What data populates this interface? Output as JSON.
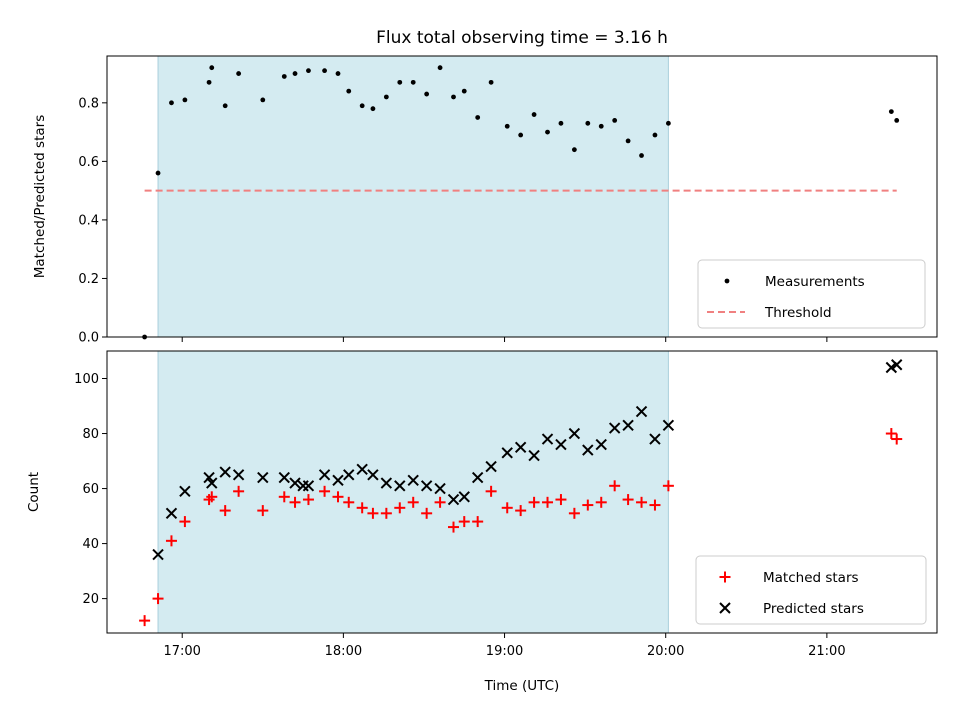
{
  "chart_data": [
    {
      "type": "scatter",
      "title": "Flux total observing time = 3.16 h",
      "xlabel": "",
      "ylabel": "Matched/Predicted stars",
      "xlim": [
        "16:32",
        "21:41"
      ],
      "ylim": [
        0,
        0.96
      ],
      "yticks": [
        "0.0",
        "0.2",
        "0.4",
        "0.6",
        "0.8"
      ],
      "ytick_values": [
        0,
        0.2,
        0.4,
        0.6,
        0.8
      ],
      "shaded_region": {
        "x": [
          "16:51",
          "20:01"
        ],
        "color": "#d4ebf1"
      },
      "grid": false,
      "legend": "lower right",
      "series": [
        {
          "name": "Measurements",
          "marker": "dot",
          "color": "#000000",
          "points": [
            [
              "16:46",
              0.0
            ],
            [
              "16:51",
              0.56
            ],
            [
              "16:56",
              0.8
            ],
            [
              "17:01",
              0.81
            ],
            [
              "17:10",
              0.87
            ],
            [
              "17:11",
              0.92
            ],
            [
              "17:16",
              0.79
            ],
            [
              "17:21",
              0.9
            ],
            [
              "17:30",
              0.81
            ],
            [
              "17:38",
              0.89
            ],
            [
              "17:42",
              0.9
            ],
            [
              "17:47",
              0.91
            ],
            [
              "17:53",
              0.91
            ],
            [
              "17:58",
              0.9
            ],
            [
              "18:02",
              0.84
            ],
            [
              "18:07",
              0.79
            ],
            [
              "18:11",
              0.78
            ],
            [
              "18:16",
              0.82
            ],
            [
              "18:21",
              0.87
            ],
            [
              "18:26",
              0.87
            ],
            [
              "18:31",
              0.83
            ],
            [
              "18:36",
              0.92
            ],
            [
              "18:41",
              0.82
            ],
            [
              "18:45",
              0.84
            ],
            [
              "18:50",
              0.75
            ],
            [
              "18:55",
              0.87
            ],
            [
              "19:01",
              0.72
            ],
            [
              "19:06",
              0.69
            ],
            [
              "19:11",
              0.76
            ],
            [
              "19:16",
              0.7
            ],
            [
              "19:21",
              0.73
            ],
            [
              "19:26",
              0.64
            ],
            [
              "19:31",
              0.73
            ],
            [
              "19:36",
              0.72
            ],
            [
              "19:41",
              0.74
            ],
            [
              "19:46",
              0.67
            ],
            [
              "19:51",
              0.62
            ],
            [
              "19:56",
              0.69
            ],
            [
              "20:01",
              0.73
            ],
            [
              "21:24",
              0.77
            ],
            [
              "21:26",
              0.74
            ]
          ]
        },
        {
          "name": "Threshold",
          "marker": "dashed-line",
          "color": "#f08080",
          "points": [
            [
              "16:46",
              0.5
            ],
            [
              "21:26",
              0.5
            ]
          ]
        }
      ]
    },
    {
      "type": "scatter",
      "title": "",
      "xlabel": "Time (UTC)",
      "ylabel": "Count",
      "xlim": [
        "16:32",
        "21:41"
      ],
      "ylim": [
        7.5,
        110
      ],
      "xticks": [
        "17:00",
        "18:00",
        "19:00",
        "20:00",
        "21:00"
      ],
      "yticks": [
        "20",
        "40",
        "60",
        "80",
        "100"
      ],
      "ytick_values": [
        20,
        40,
        60,
        80,
        100
      ],
      "shaded_region": {
        "x": [
          "16:51",
          "20:01"
        ],
        "color": "#d4ebf1"
      },
      "grid": false,
      "legend": "lower right",
      "series": [
        {
          "name": "Matched stars",
          "marker": "plus",
          "color": "#ff0000",
          "points": [
            [
              "16:46",
              12
            ],
            [
              "16:51",
              20
            ],
            [
              "16:56",
              41
            ],
            [
              "17:01",
              48
            ],
            [
              "17:10",
              56
            ],
            [
              "17:11",
              57
            ],
            [
              "17:16",
              52
            ],
            [
              "17:21",
              59
            ],
            [
              "17:30",
              52
            ],
            [
              "17:38",
              57
            ],
            [
              "17:42",
              55
            ],
            [
              "17:47",
              56
            ],
            [
              "17:53",
              59
            ],
            [
              "17:58",
              57
            ],
            [
              "18:02",
              55
            ],
            [
              "18:07",
              53
            ],
            [
              "18:11",
              51
            ],
            [
              "18:16",
              51
            ],
            [
              "18:21",
              53
            ],
            [
              "18:26",
              55
            ],
            [
              "18:31",
              51
            ],
            [
              "18:36",
              55
            ],
            [
              "18:41",
              46
            ],
            [
              "18:45",
              48
            ],
            [
              "18:50",
              48
            ],
            [
              "18:55",
              59
            ],
            [
              "19:01",
              53
            ],
            [
              "19:06",
              52
            ],
            [
              "19:11",
              55
            ],
            [
              "19:16",
              55
            ],
            [
              "19:21",
              56
            ],
            [
              "19:26",
              51
            ],
            [
              "19:31",
              54
            ],
            [
              "19:36",
              55
            ],
            [
              "19:41",
              61
            ],
            [
              "19:46",
              56
            ],
            [
              "19:51",
              55
            ],
            [
              "19:56",
              54
            ],
            [
              "20:01",
              61
            ],
            [
              "21:24",
              80
            ],
            [
              "21:26",
              78
            ]
          ]
        },
        {
          "name": "Predicted stars",
          "marker": "x",
          "color": "#000000",
          "points": [
            [
              "16:51",
              36
            ],
            [
              "16:56",
              51
            ],
            [
              "17:01",
              59
            ],
            [
              "17:10",
              64
            ],
            [
              "17:11",
              62
            ],
            [
              "17:16",
              66
            ],
            [
              "17:21",
              65
            ],
            [
              "17:30",
              64
            ],
            [
              "17:38",
              64
            ],
            [
              "17:42",
              62
            ],
            [
              "17:45",
              61
            ],
            [
              "17:47",
              61
            ],
            [
              "17:53",
              65
            ],
            [
              "17:58",
              63
            ],
            [
              "18:02",
              65
            ],
            [
              "18:07",
              67
            ],
            [
              "18:11",
              65
            ],
            [
              "18:16",
              62
            ],
            [
              "18:21",
              61
            ],
            [
              "18:26",
              63
            ],
            [
              "18:31",
              61
            ],
            [
              "18:36",
              60
            ],
            [
              "18:41",
              56
            ],
            [
              "18:45",
              57
            ],
            [
              "18:50",
              64
            ],
            [
              "18:55",
              68
            ],
            [
              "19:01",
              73
            ],
            [
              "19:06",
              75
            ],
            [
              "19:11",
              72
            ],
            [
              "19:16",
              78
            ],
            [
              "19:21",
              76
            ],
            [
              "19:26",
              80
            ],
            [
              "19:31",
              74
            ],
            [
              "19:36",
              76
            ],
            [
              "19:41",
              82
            ],
            [
              "19:46",
              83
            ],
            [
              "19:51",
              88
            ],
            [
              "19:56",
              78
            ],
            [
              "20:01",
              83
            ],
            [
              "21:24",
              104
            ],
            [
              "21:26",
              105
            ]
          ]
        }
      ]
    }
  ]
}
